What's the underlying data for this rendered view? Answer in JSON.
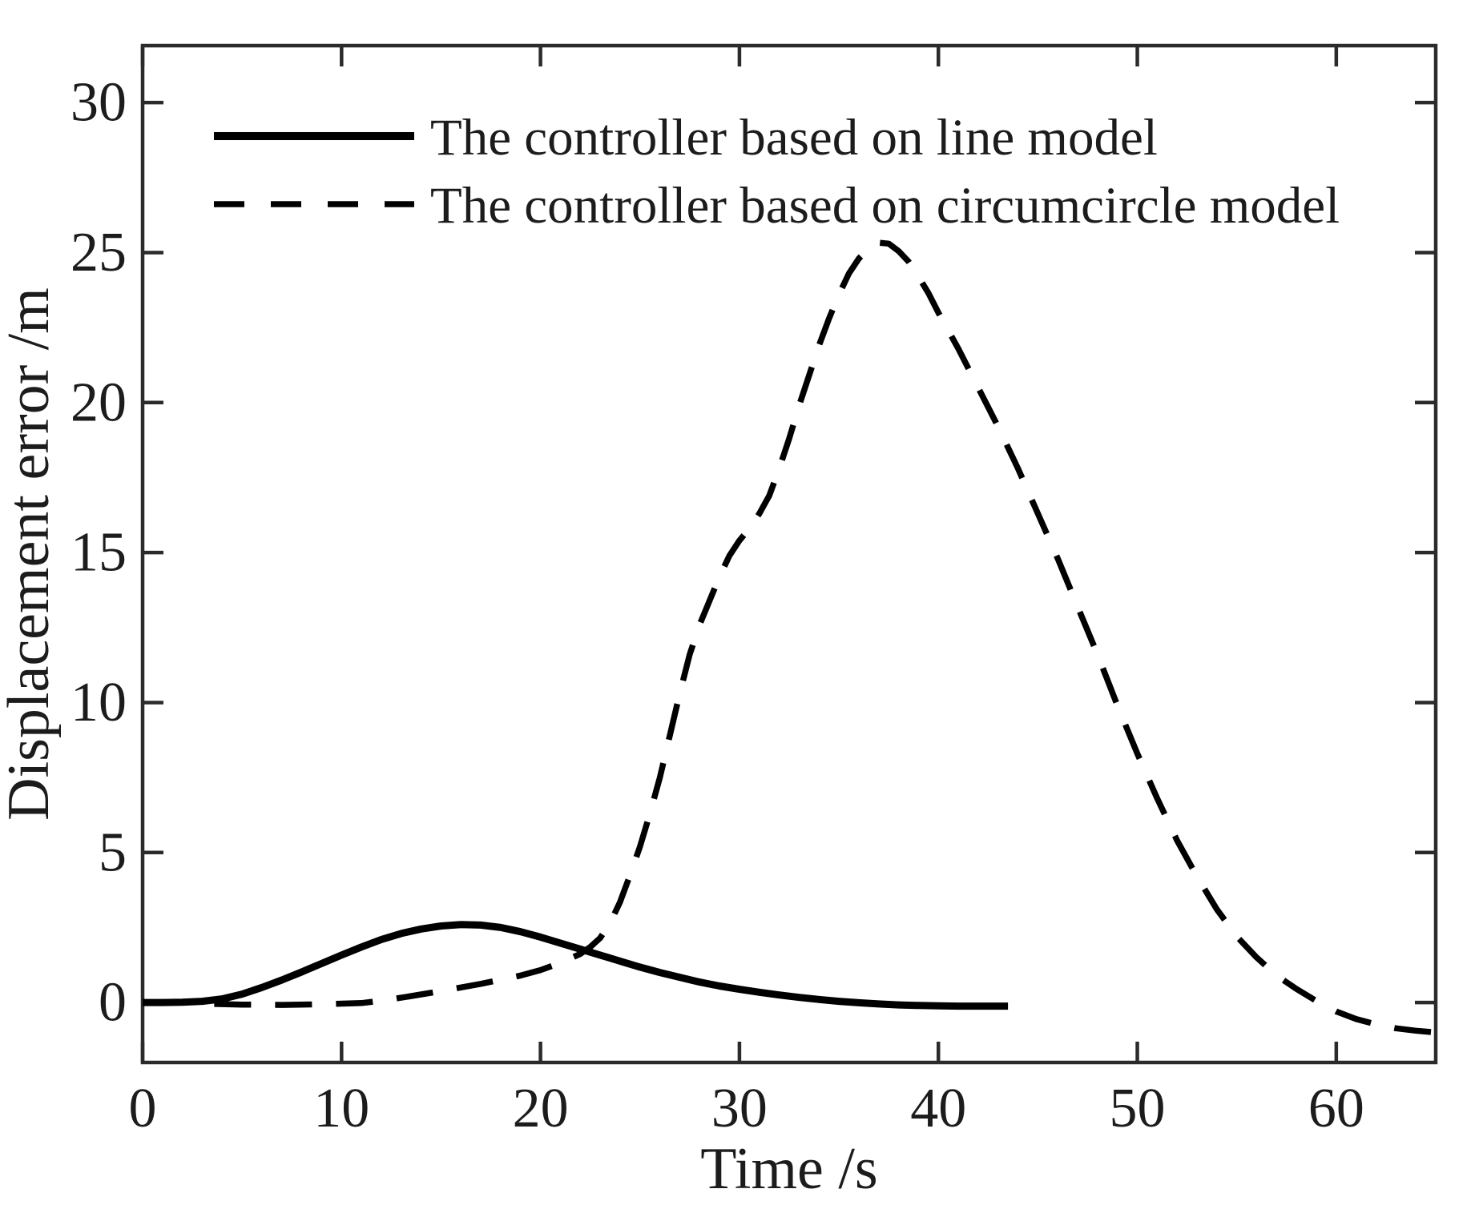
{
  "figure": {
    "xlabel": "Time /s",
    "ylabel": "Displacement error /m"
  },
  "legend": {
    "items": [
      {
        "label": "The controller based on line model",
        "style": "solid"
      },
      {
        "label": "The controller based on circumcircle model",
        "style": "dashed"
      }
    ]
  },
  "chart_data": {
    "type": "line",
    "title": "",
    "xlabel": "Time /s",
    "ylabel": "Displacement error /m",
    "xlim": [
      0,
      65
    ],
    "ylim": [
      -2,
      31.9
    ],
    "x_ticks": [
      "0",
      "10",
      "20",
      "30",
      "40",
      "50",
      "60"
    ],
    "x_tick_values": [
      0,
      10,
      20,
      30,
      40,
      50,
      60
    ],
    "y_ticks": [
      "0",
      "5",
      "10",
      "15",
      "20",
      "25",
      "30"
    ],
    "y_tick_values": [
      0,
      5,
      10,
      15,
      20,
      25,
      30
    ],
    "grid": false,
    "legend_position": "top-left-inside",
    "line_color": "#000000",
    "axis_color": "#2b2b2b",
    "series": [
      {
        "name": "The controller based on line model",
        "line_style": "solid",
        "color": "#000000",
        "points": [
          [
            0,
            0
          ],
          [
            1,
            0
          ],
          [
            2,
            0.01
          ],
          [
            3,
            0.04
          ],
          [
            4,
            0.12
          ],
          [
            5,
            0.28
          ],
          [
            6,
            0.5
          ],
          [
            7,
            0.75
          ],
          [
            8,
            1.02
          ],
          [
            9,
            1.3
          ],
          [
            10,
            1.58
          ],
          [
            11,
            1.85
          ],
          [
            12,
            2.1
          ],
          [
            13,
            2.3
          ],
          [
            14,
            2.45
          ],
          [
            15,
            2.55
          ],
          [
            16,
            2.6
          ],
          [
            17,
            2.58
          ],
          [
            18,
            2.5
          ],
          [
            19,
            2.36
          ],
          [
            20,
            2.18
          ],
          [
            21,
            1.98
          ],
          [
            22,
            1.78
          ],
          [
            23,
            1.58
          ],
          [
            24,
            1.38
          ],
          [
            25,
            1.18
          ],
          [
            26,
            1.0
          ],
          [
            27,
            0.84
          ],
          [
            28,
            0.68
          ],
          [
            29,
            0.55
          ],
          [
            30,
            0.44
          ],
          [
            31,
            0.34
          ],
          [
            32,
            0.25
          ],
          [
            33,
            0.17
          ],
          [
            34,
            0.1
          ],
          [
            35,
            0.04
          ],
          [
            36,
            -0.01
          ],
          [
            37,
            -0.05
          ],
          [
            38,
            -0.08
          ],
          [
            39,
            -0.1
          ],
          [
            40,
            -0.11
          ],
          [
            41,
            -0.12
          ],
          [
            42,
            -0.12
          ],
          [
            43,
            -0.12
          ],
          [
            43.5,
            -0.12
          ]
        ]
      },
      {
        "name": "The controller based on circumcircle model",
        "line_style": "dashed",
        "color": "#000000",
        "points": [
          [
            3.6,
            -0.05
          ],
          [
            5,
            -0.07
          ],
          [
            7,
            -0.08
          ],
          [
            9,
            -0.06
          ],
          [
            11,
            -0.02
          ],
          [
            12,
            0.06
          ],
          [
            13,
            0.16
          ],
          [
            14,
            0.27
          ],
          [
            15,
            0.38
          ],
          [
            16,
            0.5
          ],
          [
            17,
            0.62
          ],
          [
            18,
            0.76
          ],
          [
            19,
            0.9
          ],
          [
            20,
            1.08
          ],
          [
            21,
            1.32
          ],
          [
            22,
            1.62
          ],
          [
            22.5,
            1.85
          ],
          [
            23,
            2.15
          ],
          [
            23.5,
            2.65
          ],
          [
            24,
            3.35
          ],
          [
            24.5,
            4.25
          ],
          [
            25,
            5.2
          ],
          [
            25.5,
            6.3
          ],
          [
            26,
            7.5
          ],
          [
            26.5,
            8.9
          ],
          [
            27,
            10.3
          ],
          [
            27.5,
            11.6
          ],
          [
            28,
            12.6
          ],
          [
            28.5,
            13.4
          ],
          [
            29,
            14.2
          ],
          [
            29.5,
            14.9
          ],
          [
            30,
            15.4
          ],
          [
            30.5,
            15.8
          ],
          [
            31,
            16.3
          ],
          [
            31.5,
            16.9
          ],
          [
            32,
            17.8
          ],
          [
            32.5,
            18.8
          ],
          [
            33,
            19.9
          ],
          [
            33.5,
            20.9
          ],
          [
            34,
            21.9
          ],
          [
            34.5,
            22.8
          ],
          [
            35,
            23.6
          ],
          [
            35.5,
            24.3
          ],
          [
            36,
            24.8
          ],
          [
            36.5,
            25.15
          ],
          [
            37,
            25.33
          ],
          [
            37.5,
            25.3
          ],
          [
            38,
            25.05
          ],
          [
            38.5,
            24.7
          ],
          [
            39,
            24.2
          ],
          [
            39.5,
            23.65
          ],
          [
            40,
            23.0
          ],
          [
            41,
            21.8
          ],
          [
            42,
            20.5
          ],
          [
            43,
            19.2
          ],
          [
            44,
            17.8
          ],
          [
            45,
            16.3
          ],
          [
            46,
            14.8
          ],
          [
            47,
            13.2
          ],
          [
            48,
            11.6
          ],
          [
            49,
            9.9
          ],
          [
            50,
            8.3
          ],
          [
            51,
            6.8
          ],
          [
            52,
            5.4
          ],
          [
            53,
            4.2
          ],
          [
            54,
            3.1
          ],
          [
            55,
            2.2
          ],
          [
            56,
            1.5
          ],
          [
            57,
            0.9
          ],
          [
            58,
            0.45
          ],
          [
            59,
            0.05
          ],
          [
            60,
            -0.3
          ],
          [
            61,
            -0.55
          ],
          [
            62,
            -0.73
          ],
          [
            63,
            -0.86
          ],
          [
            64,
            -0.94
          ],
          [
            65,
            -1.0
          ]
        ]
      }
    ]
  }
}
